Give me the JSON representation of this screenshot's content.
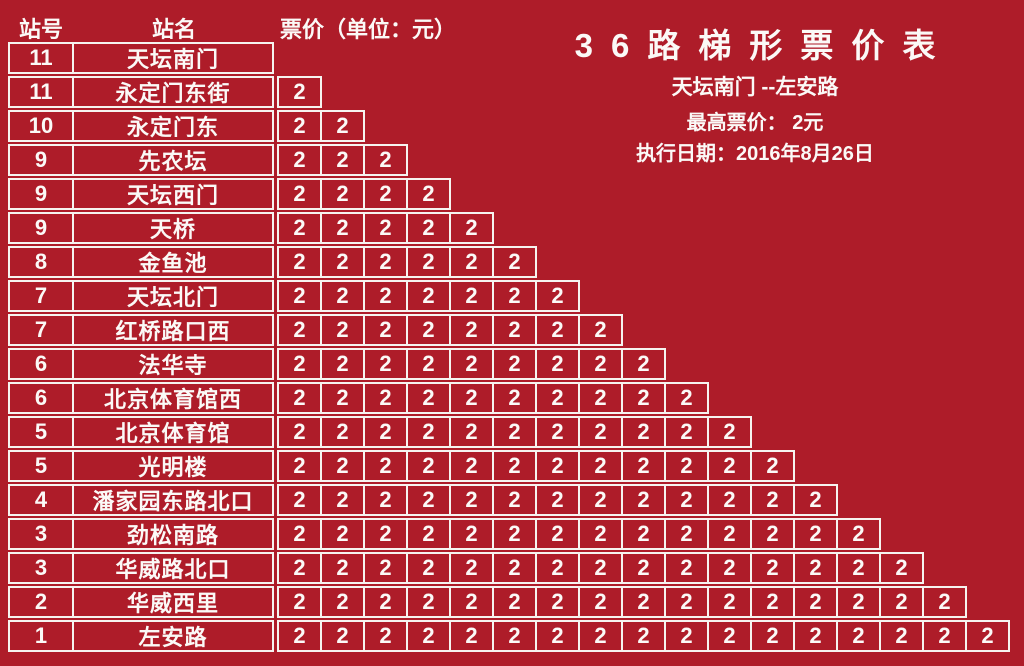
{
  "colors": {
    "background": "#AE1C29",
    "foreground": "#FBF9F7",
    "grid_line": "#F6F3F0"
  },
  "table_header": {
    "station_no": "站号",
    "station_name": "站名",
    "fare": "票价（单位：元）"
  },
  "info": {
    "title": "36路梯形票价表",
    "route": "天坛南门 --左安路",
    "max_fare": "最高票价： 2元",
    "effective_date": "执行日期：2016年8月26日"
  },
  "stations": [
    {
      "no": "11",
      "name": "天坛南门",
      "fares": []
    },
    {
      "no": "11",
      "name": "永定门东街",
      "fares": [
        "2"
      ]
    },
    {
      "no": "10",
      "name": "永定门东",
      "fares": [
        "2",
        "2"
      ]
    },
    {
      "no": "9",
      "name": "先农坛",
      "fares": [
        "2",
        "2",
        "2"
      ]
    },
    {
      "no": "9",
      "name": "天坛西门",
      "fares": [
        "2",
        "2",
        "2",
        "2"
      ]
    },
    {
      "no": "9",
      "name": "天桥",
      "fares": [
        "2",
        "2",
        "2",
        "2",
        "2"
      ]
    },
    {
      "no": "8",
      "name": "金鱼池",
      "fares": [
        "2",
        "2",
        "2",
        "2",
        "2",
        "2"
      ]
    },
    {
      "no": "7",
      "name": "天坛北门",
      "fares": [
        "2",
        "2",
        "2",
        "2",
        "2",
        "2",
        "2"
      ]
    },
    {
      "no": "7",
      "name": "红桥路口西",
      "fares": [
        "2",
        "2",
        "2",
        "2",
        "2",
        "2",
        "2",
        "2"
      ]
    },
    {
      "no": "6",
      "name": "法华寺",
      "fares": [
        "2",
        "2",
        "2",
        "2",
        "2",
        "2",
        "2",
        "2",
        "2"
      ]
    },
    {
      "no": "6",
      "name": "北京体育馆西",
      "fares": [
        "2",
        "2",
        "2",
        "2",
        "2",
        "2",
        "2",
        "2",
        "2",
        "2"
      ]
    },
    {
      "no": "5",
      "name": "北京体育馆",
      "fares": [
        "2",
        "2",
        "2",
        "2",
        "2",
        "2",
        "2",
        "2",
        "2",
        "2",
        "2"
      ]
    },
    {
      "no": "5",
      "name": "光明楼",
      "fares": [
        "2",
        "2",
        "2",
        "2",
        "2",
        "2",
        "2",
        "2",
        "2",
        "2",
        "2",
        "2"
      ]
    },
    {
      "no": "4",
      "name": "潘家园东路北口",
      "fares": [
        "2",
        "2",
        "2",
        "2",
        "2",
        "2",
        "2",
        "2",
        "2",
        "2",
        "2",
        "2",
        "2"
      ]
    },
    {
      "no": "3",
      "name": "劲松南路",
      "fares": [
        "2",
        "2",
        "2",
        "2",
        "2",
        "2",
        "2",
        "2",
        "2",
        "2",
        "2",
        "2",
        "2",
        "2"
      ]
    },
    {
      "no": "3",
      "name": "华威路北口",
      "fares": [
        "2",
        "2",
        "2",
        "2",
        "2",
        "2",
        "2",
        "2",
        "2",
        "2",
        "2",
        "2",
        "2",
        "2",
        "2"
      ]
    },
    {
      "no": "2",
      "name": "华威西里",
      "fares": [
        "2",
        "2",
        "2",
        "2",
        "2",
        "2",
        "2",
        "2",
        "2",
        "2",
        "2",
        "2",
        "2",
        "2",
        "2",
        "2"
      ]
    },
    {
      "no": "1",
      "name": "左安路",
      "fares": [
        "2",
        "2",
        "2",
        "2",
        "2",
        "2",
        "2",
        "2",
        "2",
        "2",
        "2",
        "2",
        "2",
        "2",
        "2",
        "2",
        "2"
      ]
    }
  ]
}
